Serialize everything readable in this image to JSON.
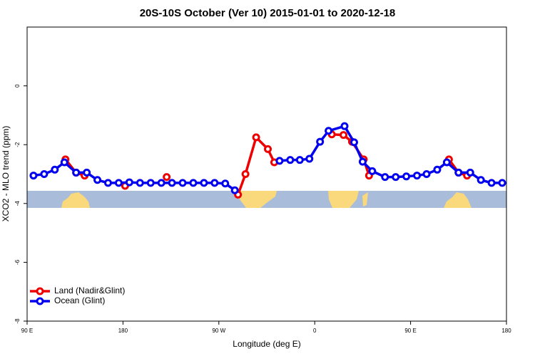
{
  "chart_data": {
    "type": "line",
    "title": "20S-10S October (Ver 10)   2015-01-01 to 2020-12-18",
    "xlabel": "Longitude (deg E)",
    "ylabel": "XCO2 - MLO trend (ppm)",
    "xlim": [
      90,
      540
    ],
    "xticks": [
      {
        "value": 90,
        "label": "90 E"
      },
      {
        "value": 180,
        "label": "180"
      },
      {
        "value": 270,
        "label": "90 W"
      },
      {
        "value": 360,
        "label": "0"
      },
      {
        "value": 450,
        "label": "90 E"
      },
      {
        "value": 540,
        "label": "180"
      }
    ],
    "ylim": [
      -8,
      2
    ],
    "yticks": [
      -8,
      -6,
      -4,
      -2,
      0
    ],
    "legend": "bottomleft",
    "series": [
      {
        "name": "Land (Nadir&Glint)",
        "color": "#ee0000",
        "x": [
          126,
          136,
          144,
          null,
          182,
          null,
          221,
          null,
          288,
          295,
          305,
          316,
          322,
          null,
          376,
          387,
          395,
          406,
          411,
          null,
          486,
          495,
          503
        ],
        "values": [
          -2.5,
          -2.95,
          -3.05,
          null,
          -3.4,
          null,
          -3.1,
          null,
          -3.7,
          -3.0,
          -1.75,
          -2.15,
          -2.6,
          null,
          -1.65,
          -1.67,
          -1.9,
          -2.5,
          -3.05,
          null,
          -2.5,
          -2.95,
          -3.05
        ]
      },
      {
        "name": "Ocean (Glint)",
        "color": "#0000ee",
        "x": [
          96,
          106,
          116,
          125,
          136,
          146,
          156,
          166,
          176,
          186,
          196,
          206,
          216,
          226,
          236,
          246,
          256,
          266,
          276,
          285,
          null,
          327,
          337,
          346,
          355,
          365,
          373,
          388,
          397,
          405,
          414,
          426,
          436,
          446,
          456,
          465,
          475,
          484,
          495,
          506,
          516,
          526,
          536
        ],
        "values": [
          -3.05,
          -3.0,
          -2.85,
          -2.6,
          -2.95,
          -2.95,
          -3.2,
          -3.3,
          -3.3,
          -3.28,
          -3.3,
          -3.3,
          -3.3,
          -3.3,
          -3.3,
          -3.3,
          -3.3,
          -3.3,
          -3.32,
          -3.55,
          null,
          -2.55,
          -2.52,
          -2.52,
          -2.48,
          -1.9,
          -1.53,
          -1.37,
          -1.92,
          -2.58,
          -2.9,
          -3.1,
          -3.1,
          -3.08,
          -3.05,
          -3.0,
          -2.85,
          -2.6,
          -2.95,
          -2.95,
          -3.2,
          -3.3,
          -3.3
        ]
      }
    ]
  }
}
